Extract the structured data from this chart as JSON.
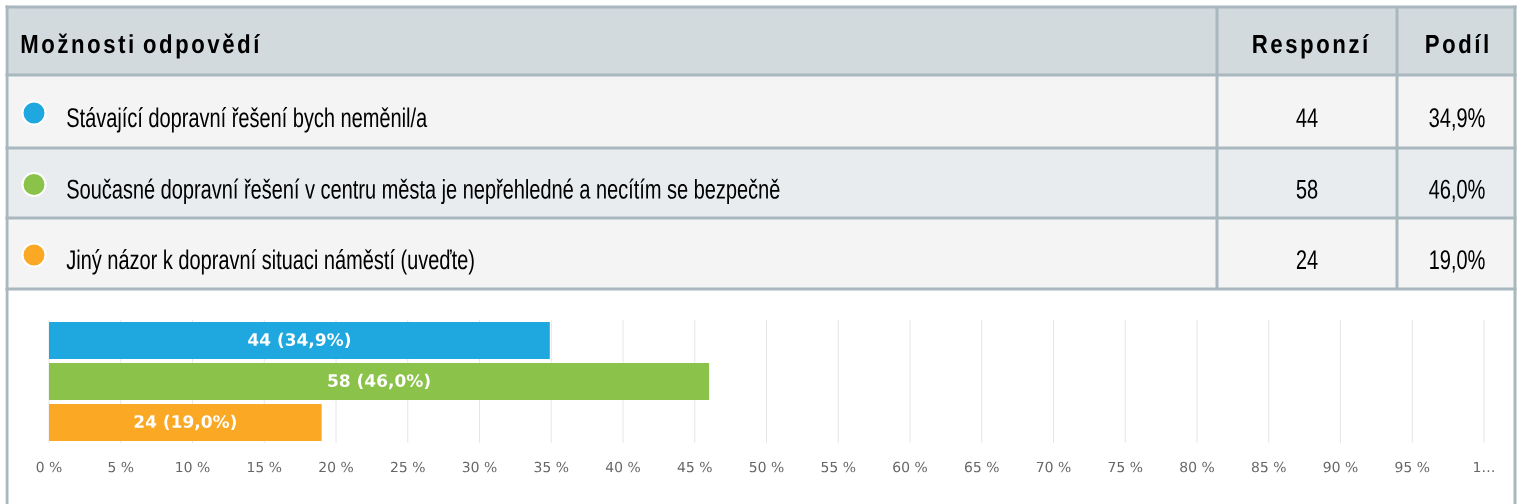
{
  "chart_data": {
    "type": "bar",
    "orientation": "horizontal",
    "categories": [
      null,
      null,
      null
    ],
    "series": [
      {
        "name": "Stávající dopravní řešení bych neměnil/a",
        "color": "#1fa8e0",
        "values": [
          34.9,
          null,
          null
        ],
        "value_labels": [
          "44 (34,9%)",
          null,
          null
        ]
      },
      {
        "name": "Současné dopravní řešení v centru města je nepřehledné a necítím se bezpečně",
        "color": "#8bc34a",
        "values": [
          null,
          46.0,
          null
        ],
        "value_labels": [
          null,
          "58 (46,0%)",
          null
        ]
      },
      {
        "name": "Jiný názor k dopravní situaci náměstí (uveďte)",
        "color": "#fba924",
        "values": [
          null,
          null,
          19.0
        ],
        "value_labels": [
          null,
          null,
          "24 (19,0%)"
        ]
      }
    ],
    "legend": "top",
    "xlim": [
      0,
      100
    ],
    "xticks": [
      {
        "value": 0,
        "label": "0 %"
      },
      {
        "value": 5,
        "label": "5 %"
      },
      {
        "value": 10,
        "label": "10 %"
      },
      {
        "value": 15,
        "label": "15 %"
      },
      {
        "value": 20,
        "label": "20 %"
      },
      {
        "value": 25,
        "label": "25 %"
      },
      {
        "value": 30,
        "label": "30 %"
      },
      {
        "value": 35,
        "label": "35 %"
      },
      {
        "value": 40,
        "label": "40 %"
      },
      {
        "value": 45,
        "label": "45 %"
      },
      {
        "value": 50,
        "label": "50 %"
      },
      {
        "value": 55,
        "label": "55 %"
      },
      {
        "value": 60,
        "label": "60 %"
      },
      {
        "value": 65,
        "label": "65 %"
      },
      {
        "value": 70,
        "label": "70 %"
      },
      {
        "value": 75,
        "label": "75 %"
      },
      {
        "value": 80,
        "label": "80 %"
      },
      {
        "value": 85,
        "label": "85 %"
      },
      {
        "value": 90,
        "label": "90 %"
      },
      {
        "value": 95,
        "label": "95 %"
      },
      {
        "value": 100,
        "label": "1…"
      }
    ],
    "grid": "x",
    "tick_labels": "x",
    "annotations": [
      "Možnosti odpovědí",
      "Responzí",
      "Podíl",
      "44",
      "34,9%",
      "58",
      "46,0%",
      "24",
      "19,0%"
    ]
  }
}
